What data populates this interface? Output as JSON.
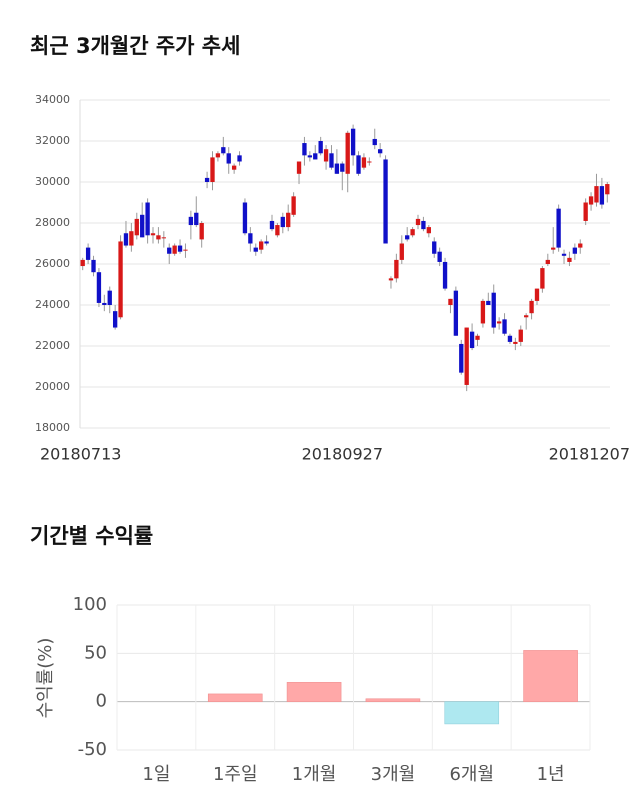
{
  "chart_data": [
    {
      "type": "candlestick",
      "title": "최근 3개월간 주가 추세",
      "categories": [
        "20180713",
        null,
        null,
        null,
        null,
        null,
        null,
        null,
        null,
        null,
        null,
        null,
        null,
        null,
        null,
        null,
        null,
        null,
        null,
        null,
        null,
        null,
        null,
        null,
        null,
        null,
        null,
        null,
        null,
        null,
        null,
        null,
        null,
        null,
        null,
        null,
        null,
        null,
        null,
        null,
        null,
        null,
        null,
        null,
        null,
        null,
        null,
        null,
        "20180927",
        null,
        null,
        null,
        null,
        null,
        null,
        null,
        null,
        null,
        null,
        null,
        null,
        null,
        null,
        null,
        null,
        null,
        null,
        null,
        null,
        null,
        null,
        null,
        null,
        null,
        null,
        null,
        null,
        null,
        null,
        null,
        null,
        null,
        null,
        null,
        null,
        null,
        null,
        null,
        null,
        null,
        null,
        null,
        null,
        null,
        null,
        null,
        null,
        "20181207"
      ],
      "open": [
        25900,
        26800,
        26200,
        25600,
        24100,
        24700,
        23700,
        23400,
        27500,
        26900,
        27400,
        28400,
        29000,
        27400,
        27200,
        27300,
        26800,
        26500,
        26900,
        26700,
        28300,
        28500,
        27200,
        30200,
        30000,
        31200,
        31700,
        31400,
        30600,
        31300,
        29000,
        27500,
        26800,
        26700,
        27100,
        28100,
        27400,
        28300,
        27800,
        28400,
        30400,
        31900,
        31300,
        31400,
        32000,
        31000,
        31400,
        30900,
        30900,
        30400,
        32600,
        31300,
        30700,
        31000,
        32100,
        31600,
        31100,
        25200,
        25300,
        26200,
        27400,
        27400,
        27900,
        28100,
        27500,
        27100,
        26600,
        26100,
        24000,
        24700,
        22100,
        20100,
        22700,
        22300,
        23100,
        24200,
        24600,
        23100,
        23300,
        22500,
        22100,
        22200,
        23400,
        23600,
        24200,
        24800,
        26000,
        26700,
        28700,
        26500,
        26100,
        26800,
        26800,
        28100,
        28900,
        29000,
        29800,
        29400
      ],
      "high": [
        26300,
        27000,
        26400,
        25800,
        24500,
        24900,
        24000,
        27400,
        28100,
        28000,
        28500,
        29000,
        29200,
        27800,
        27800,
        27600,
        27000,
        27000,
        27200,
        27000,
        28600,
        29300,
        28100,
        30500,
        31500,
        31500,
        32200,
        31700,
        30900,
        31500,
        29200,
        27800,
        27000,
        27200,
        27400,
        28400,
        28000,
        28500,
        28900,
        29500,
        31000,
        32200,
        31500,
        31800,
        32200,
        31800,
        31800,
        31600,
        31000,
        32500,
        32800,
        31500,
        31400,
        31200,
        32600,
        31900,
        31300,
        25400,
        26500,
        27400,
        27800,
        27800,
        28400,
        28300,
        27900,
        27300,
        26800,
        26300,
        24300,
        24900,
        22300,
        22900,
        23100,
        22600,
        24300,
        24600,
        25000,
        23400,
        23600,
        22600,
        22400,
        23000,
        23600,
        24300,
        24800,
        25900,
        26500,
        27800,
        28900,
        26700,
        26600,
        27000,
        27200,
        29200,
        29500,
        30400,
        30200,
        30000
      ],
      "low": [
        25700,
        26000,
        25400,
        23900,
        23700,
        23600,
        22800,
        23300,
        26800,
        26600,
        27200,
        27300,
        27000,
        27000,
        27000,
        26800,
        26000,
        26400,
        26500,
        26300,
        27200,
        27800,
        26800,
        29700,
        29600,
        31000,
        31300,
        30400,
        30400,
        30800,
        27400,
        26600,
        26400,
        26500,
        26900,
        27600,
        27300,
        27500,
        27600,
        28300,
        29900,
        30800,
        31000,
        31100,
        31300,
        30600,
        30600,
        30400,
        29600,
        29500,
        30800,
        30300,
        30600,
        30800,
        31600,
        31200,
        27000,
        24800,
        25100,
        26000,
        27100,
        27300,
        27700,
        27600,
        27300,
        26300,
        25900,
        24700,
        23600,
        22500,
        20600,
        19800,
        21800,
        22000,
        22900,
        24000,
        22600,
        22800,
        22500,
        22100,
        21800,
        22000,
        22800,
        23300,
        24000,
        24600,
        25900,
        26500,
        26600,
        26000,
        25900,
        26200,
        26500,
        27900,
        28600,
        28800,
        28700,
        29000
      ],
      "close": [
        26200,
        26200,
        25600,
        24100,
        24000,
        24000,
        22900,
        27100,
        26900,
        27600,
        28200,
        27300,
        27400,
        27500,
        27400,
        27300,
        26500,
        26900,
        26600,
        26700,
        27900,
        27900,
        28000,
        30000,
        31200,
        31400,
        31400,
        30900,
        30800,
        31000,
        27500,
        27000,
        26600,
        27100,
        27000,
        27700,
        27900,
        27800,
        28500,
        29300,
        31000,
        31300,
        31200,
        31100,
        31400,
        31600,
        30700,
        30400,
        30500,
        32400,
        31300,
        30400,
        31200,
        31000,
        31800,
        31400,
        27000,
        25300,
        26200,
        27000,
        27200,
        27700,
        28200,
        27700,
        27800,
        26500,
        26100,
        24800,
        24300,
        22500,
        20700,
        22900,
        21900,
        22500,
        24200,
        24000,
        22900,
        23200,
        22600,
        22200,
        22200,
        22800,
        23500,
        24200,
        24800,
        25800,
        26200,
        26800,
        26800,
        26400,
        26300,
        26500,
        27000,
        29000,
        29300,
        29800,
        28900,
        29900
      ],
      "ylim": [
        18000,
        34000
      ],
      "yticks": [
        18000,
        20000,
        22000,
        24000,
        26000,
        28000,
        30000,
        32000,
        34000
      ],
      "grid": true,
      "up_color": "#d81818",
      "down_color": "#1010c8"
    },
    {
      "type": "bar",
      "title": "기간별 수익률",
      "ylabel": "수익률(%)",
      "categories": [
        "1일",
        "1주일",
        "1개월",
        "3개월",
        "6개월",
        "1년"
      ],
      "values": [
        0,
        8,
        20,
        3,
        -23,
        53
      ],
      "ylim": [
        -50,
        100
      ],
      "yticks": [
        -50,
        0,
        50,
        100
      ],
      "grid": true,
      "positive_color": "#ffa8a8",
      "negative_color": "#aee8f0"
    }
  ]
}
